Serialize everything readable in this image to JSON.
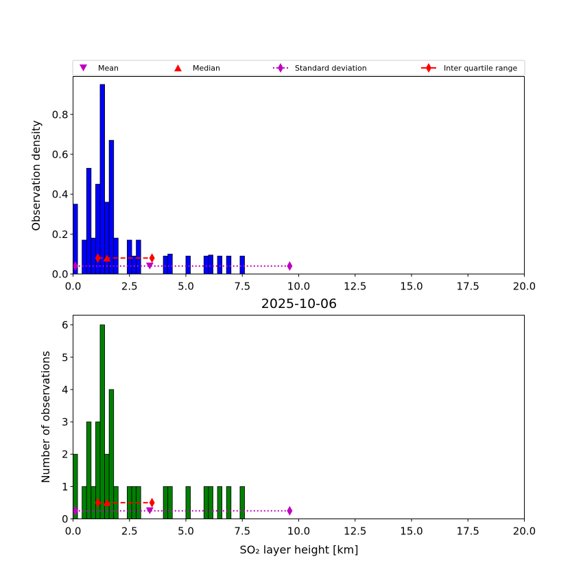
{
  "chart_data": [
    {
      "type": "bar",
      "panel": "top",
      "title": "",
      "xlabel": "",
      "ylabel": "Observation density",
      "xlim": [
        0,
        20
      ],
      "ylim": [
        0,
        0.99
      ],
      "xticks": [
        0.0,
        2.5,
        5.0,
        7.5,
        10.0,
        12.5,
        15.0,
        17.5,
        20.0
      ],
      "xtick_labels": [
        "0.0",
        "2.5",
        "5.0",
        "7.5",
        "10.0",
        "12.5",
        "15.0",
        "17.5",
        "20.0"
      ],
      "yticks": [
        0.0,
        0.2,
        0.4,
        0.6,
        0.8
      ],
      "ytick_labels": [
        "0.0",
        "0.2",
        "0.4",
        "0.6",
        "0.8"
      ],
      "bar_color": "#0000ff",
      "bars": [
        {
          "x": 0.1,
          "value": 0.35
        },
        {
          "x": 0.5,
          "value": 0.17
        },
        {
          "x": 0.7,
          "value": 0.53
        },
        {
          "x": 0.9,
          "value": 0.18
        },
        {
          "x": 1.1,
          "value": 0.45
        },
        {
          "x": 1.3,
          "value": 0.95
        },
        {
          "x": 1.5,
          "value": 0.36
        },
        {
          "x": 1.7,
          "value": 0.67
        },
        {
          "x": 1.9,
          "value": 0.18
        },
        {
          "x": 2.5,
          "value": 0.17
        },
        {
          "x": 2.7,
          "value": 0.09
        },
        {
          "x": 2.9,
          "value": 0.17
        },
        {
          "x": 4.1,
          "value": 0.09
        },
        {
          "x": 4.3,
          "value": 0.1
        },
        {
          "x": 5.1,
          "value": 0.09
        },
        {
          "x": 5.9,
          "value": 0.09
        },
        {
          "x": 6.1,
          "value": 0.095
        },
        {
          "x": 6.5,
          "value": 0.09
        },
        {
          "x": 6.9,
          "value": 0.09
        },
        {
          "x": 7.5,
          "value": 0.09
        }
      ],
      "stats": {
        "mean": {
          "x": 3.4,
          "y": 0.04
        },
        "median": {
          "x": 1.5,
          "y": 0.08
        },
        "std_range": {
          "x0": 0.1,
          "x1": 9.6,
          "y": 0.04
        },
        "iqr_range": {
          "x0": 1.1,
          "x1": 3.5,
          "y": 0.08
        }
      }
    },
    {
      "type": "bar",
      "panel": "bottom",
      "title": "2025-10-06",
      "xlabel": "SO₂ layer height [km]",
      "ylabel": "Number of observations",
      "xlim": [
        0,
        20
      ],
      "ylim": [
        0,
        6.3
      ],
      "xticks": [
        0.0,
        2.5,
        5.0,
        7.5,
        10.0,
        12.5,
        15.0,
        17.5,
        20.0
      ],
      "xtick_labels": [
        "0.0",
        "2.5",
        "5.0",
        "7.5",
        "10.0",
        "12.5",
        "15.0",
        "17.5",
        "20.0"
      ],
      "yticks": [
        0,
        1,
        2,
        3,
        4,
        5,
        6
      ],
      "ytick_labels": [
        "0",
        "1",
        "2",
        "3",
        "4",
        "5",
        "6"
      ],
      "bar_color": "#008000",
      "bars": [
        {
          "x": 0.1,
          "value": 2
        },
        {
          "x": 0.5,
          "value": 1
        },
        {
          "x": 0.7,
          "value": 3
        },
        {
          "x": 0.9,
          "value": 1
        },
        {
          "x": 1.1,
          "value": 3
        },
        {
          "x": 1.3,
          "value": 6
        },
        {
          "x": 1.5,
          "value": 2
        },
        {
          "x": 1.7,
          "value": 4
        },
        {
          "x": 1.9,
          "value": 1
        },
        {
          "x": 2.5,
          "value": 1
        },
        {
          "x": 2.7,
          "value": 1
        },
        {
          "x": 2.9,
          "value": 1
        },
        {
          "x": 4.1,
          "value": 1
        },
        {
          "x": 4.3,
          "value": 1
        },
        {
          "x": 5.1,
          "value": 1
        },
        {
          "x": 5.9,
          "value": 1
        },
        {
          "x": 6.1,
          "value": 1
        },
        {
          "x": 6.5,
          "value": 1
        },
        {
          "x": 6.9,
          "value": 1
        },
        {
          "x": 7.5,
          "value": 1
        }
      ],
      "stats": {
        "mean": {
          "x": 3.4,
          "y": 0.25
        },
        "median": {
          "x": 1.5,
          "y": 0.5
        },
        "std_range": {
          "x0": 0.1,
          "x1": 9.6,
          "y": 0.25
        },
        "iqr_range": {
          "x0": 1.1,
          "x1": 3.5,
          "y": 0.5
        }
      }
    }
  ],
  "legend": {
    "placement": "top",
    "items": [
      {
        "label": "Mean",
        "marker": "triangle-down",
        "color": "#bf00bf"
      },
      {
        "label": "Median",
        "marker": "triangle-up",
        "color": "#ff0000"
      },
      {
        "label": "Standard deviation",
        "marker": "diamond-dotted-line",
        "color": "#bf00bf"
      },
      {
        "label": "Inter quartile range",
        "marker": "diamond-solid-line",
        "color": "#ff0000"
      }
    ]
  },
  "bin_width_km": 0.2,
  "colors": {
    "mean": "#bf00bf",
    "median": "#ff0000",
    "std": "#bf00bf",
    "iqr": "#ff0000"
  }
}
